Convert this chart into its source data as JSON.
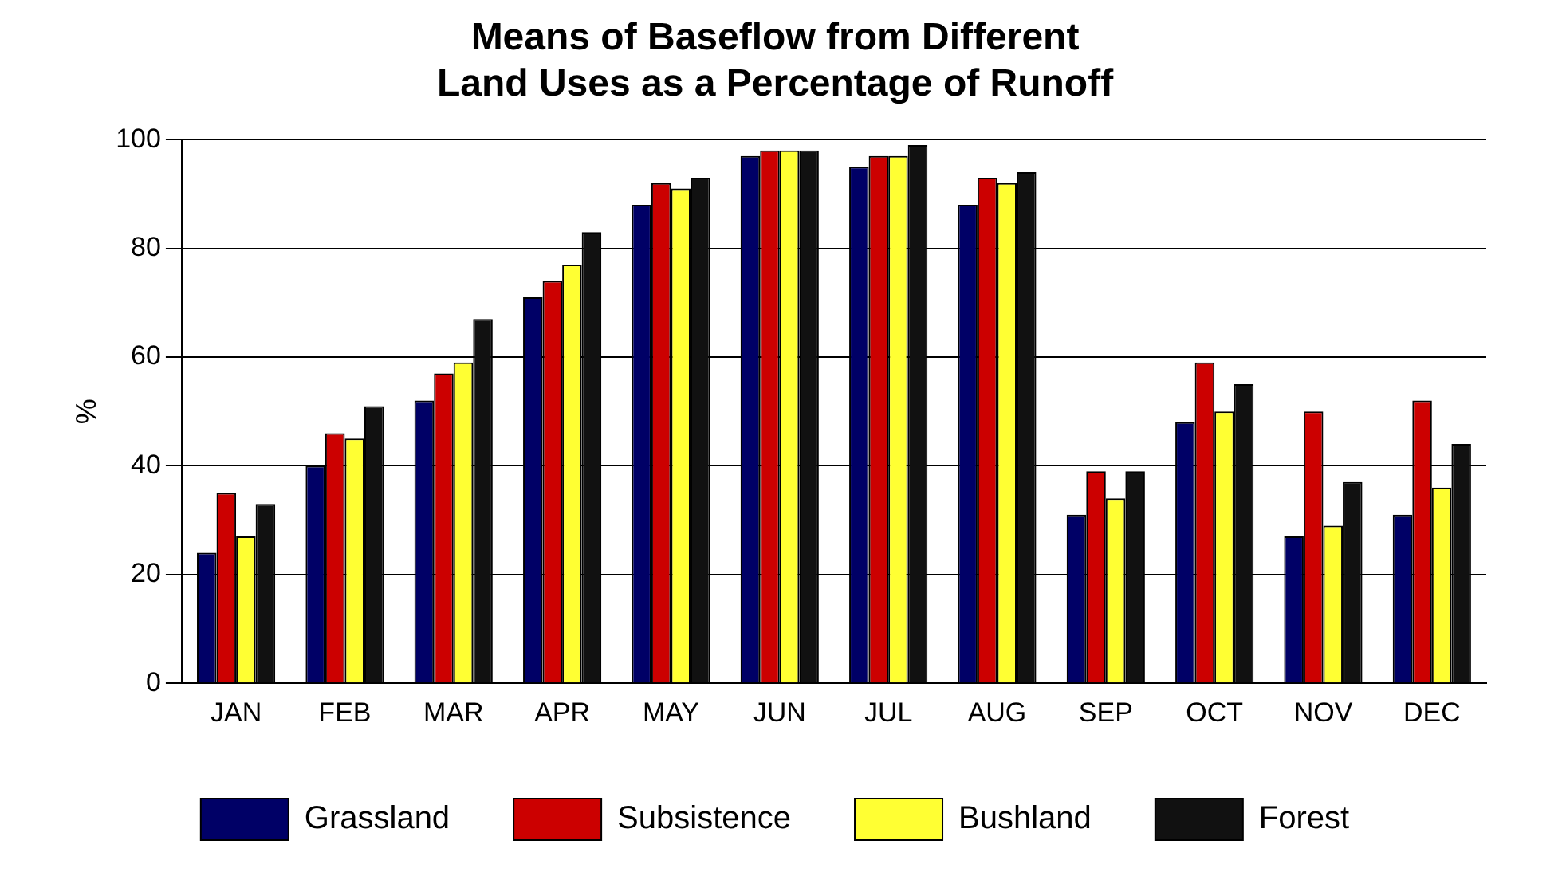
{
  "chart_data": {
    "type": "bar",
    "title": [
      "Means of Baseflow from Different",
      "Land Uses as a Percentage of Runoff"
    ],
    "ylabel": "%",
    "categories": [
      "JAN",
      "FEB",
      "MAR",
      "APR",
      "MAY",
      "JUN",
      "JUL",
      "AUG",
      "SEP",
      "OCT",
      "NOV",
      "DEC"
    ],
    "series": [
      {
        "name": "Grassland",
        "color": "#000066",
        "values": [
          24,
          40,
          52,
          71,
          88,
          97,
          95,
          88,
          31,
          48,
          27,
          31
        ]
      },
      {
        "name": "Subsistence",
        "color": "#cc0000",
        "values": [
          35,
          46,
          57,
          74,
          92,
          98,
          97,
          93,
          39,
          59,
          50,
          52
        ]
      },
      {
        "name": "Bushland",
        "color": "#ffff33",
        "values": [
          27,
          45,
          59,
          77,
          91,
          98,
          97,
          92,
          34,
          50,
          29,
          36
        ]
      },
      {
        "name": "Forest",
        "color": "#111111",
        "values": [
          33,
          51,
          67,
          83,
          93,
          98,
          99,
          94,
          39,
          55,
          37,
          44
        ]
      }
    ],
    "ylim": [
      0,
      100
    ],
    "yticks": [
      0,
      20,
      40,
      60,
      80,
      100
    ],
    "grid": "y",
    "legend": "bottom"
  }
}
